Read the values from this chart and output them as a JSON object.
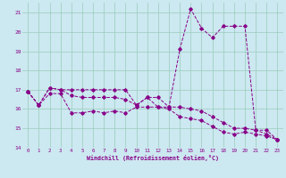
{
  "xlabel": "Windchill (Refroidissement éolien,°C)",
  "bg_color": "#cce8f0",
  "line_color": "#880088",
  "grid_color": "#99ccbb",
  "xlim": [
    -0.5,
    23.5
  ],
  "ylim": [
    14,
    21.5
  ],
  "xticks": [
    0,
    1,
    2,
    3,
    4,
    5,
    6,
    7,
    8,
    9,
    10,
    11,
    12,
    13,
    14,
    15,
    16,
    17,
    18,
    19,
    20,
    21,
    22,
    23
  ],
  "yticks": [
    14,
    15,
    16,
    17,
    18,
    19,
    20,
    21
  ],
  "series1_x": [
    0,
    1,
    2,
    3,
    4,
    5,
    6,
    7,
    8,
    9,
    10,
    11,
    12,
    13,
    14,
    15,
    16,
    17,
    18,
    19,
    20,
    21,
    22,
    23
  ],
  "series1_y": [
    16.9,
    16.2,
    16.8,
    16.8,
    15.8,
    15.8,
    15.9,
    15.8,
    15.9,
    15.8,
    16.1,
    16.1,
    16.1,
    16.0,
    15.6,
    15.5,
    15.4,
    15.1,
    14.8,
    14.7,
    14.8,
    14.7,
    14.6,
    14.4
  ],
  "series2_x": [
    0,
    1,
    2,
    3,
    4,
    5,
    6,
    7,
    8,
    9,
    10,
    11,
    12,
    13,
    14,
    15,
    16,
    17,
    18,
    19,
    20,
    21,
    22,
    23
  ],
  "series2_y": [
    16.9,
    16.2,
    17.1,
    17.0,
    16.7,
    16.6,
    16.6,
    16.6,
    16.6,
    16.5,
    16.2,
    16.6,
    16.1,
    16.1,
    16.1,
    16.0,
    15.9,
    15.6,
    15.3,
    15.0,
    15.0,
    14.9,
    14.7,
    14.4
  ],
  "series3_x": [
    0,
    1,
    2,
    3,
    4,
    5,
    6,
    7,
    8,
    9,
    10,
    11,
    12,
    13,
    14,
    15,
    16,
    17,
    18,
    19,
    20,
    21,
    22,
    23
  ],
  "series3_y": [
    16.9,
    16.2,
    17.1,
    17.0,
    17.0,
    17.0,
    17.0,
    17.0,
    17.0,
    17.0,
    16.2,
    16.6,
    16.6,
    16.1,
    19.1,
    21.2,
    20.2,
    19.7,
    20.3,
    20.3,
    20.3,
    14.9,
    14.9,
    14.4
  ]
}
